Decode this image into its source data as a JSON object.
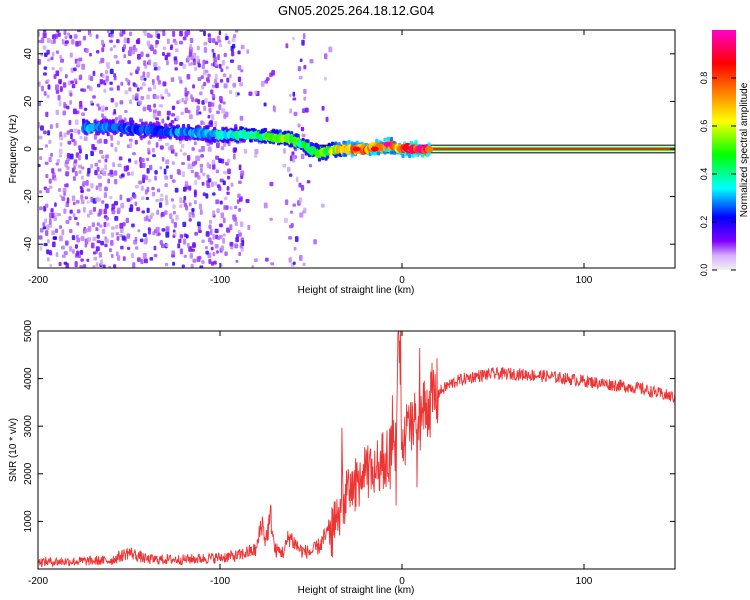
{
  "title": "GN05.2025.264.18.12.G04",
  "chart_data": [
    {
      "type": "heatmap",
      "name": "spectrogram",
      "xlabel": "Height of straight line (km)",
      "ylabel": "Frequency (Hz)",
      "xlim": [
        -200,
        150
      ],
      "ylim": [
        -50,
        50
      ],
      "x_ticks": [
        -200,
        -100,
        0,
        100
      ],
      "x_tick_labels": [
        "-200",
        "-100",
        "0",
        "100"
      ],
      "y_ticks": [
        -40,
        -20,
        0,
        20,
        40
      ],
      "y_tick_labels": [
        "-40",
        "-20",
        "0",
        "20",
        "40"
      ],
      "colorbar": {
        "label": "Normalized spectral amplitude",
        "range": [
          0,
          1
        ],
        "ticks": [
          0,
          0.2,
          0.4,
          0.6,
          0.8
        ],
        "tick_labels": [
          "0.0",
          "0.2",
          "0.4",
          "0.6",
          "0.8"
        ],
        "colormap": [
          "#f0f0f0",
          "#7f00ff",
          "#0000ff",
          "#00ffff",
          "#00ff00",
          "#ffff00",
          "#ff7f00",
          "#ff0000",
          "#ff00cc"
        ]
      },
      "ridge": {
        "description": "dominant frequency track",
        "x": [
          -175,
          -160,
          -140,
          -120,
          -100,
          -85,
          -70,
          -60,
          -55,
          -50,
          -45,
          -40,
          -35,
          -30,
          -20,
          -10,
          -8,
          -5,
          0,
          10,
          50,
          100,
          150
        ],
        "y": [
          9,
          9,
          8,
          7,
          6,
          6,
          5,
          4,
          2,
          0,
          -2,
          -1,
          0,
          0,
          0,
          1,
          2,
          1,
          0,
          0,
          0,
          0,
          0
        ],
        "amplitude": [
          0.35,
          0.35,
          0.3,
          0.35,
          0.4,
          0.5,
          0.55,
          0.6,
          0.5,
          0.55,
          0.55,
          0.6,
          0.7,
          0.8,
          0.85,
          0.9,
          0.95,
          0.8,
          0.85,
          1.0,
          1.0,
          1.0,
          1.0
        ]
      },
      "noise_regions": [
        {
          "x_range": [
            -200,
            -90
          ],
          "density": 0.65
        },
        {
          "x_range": [
            -90,
            -60
          ],
          "density": 0.08
        },
        {
          "x_range": [
            -62,
            -55
          ],
          "density": 0.35
        },
        {
          "x_range": [
            -55,
            -40
          ],
          "density": 0.08
        }
      ]
    },
    {
      "type": "line",
      "name": "snr",
      "xlabel": "Height of straight line (km)",
      "ylabel": "SNR (10 * v/v)",
      "xlim": [
        -200,
        150
      ],
      "ylim": [
        0,
        5000
      ],
      "x_ticks": [
        -200,
        -100,
        0,
        100
      ],
      "x_tick_labels": [
        "-200",
        "-100",
        "0",
        "100"
      ],
      "y_ticks": [
        1000,
        2000,
        3000,
        4000,
        5000
      ],
      "y_tick_labels": [
        "1000",
        "2000",
        "3000",
        "4000",
        "5000"
      ],
      "color": "#ee3333",
      "series": [
        {
          "name": "SNR",
          "x": [
            -200,
            -180,
            -160,
            -150,
            -140,
            -120,
            -100,
            -90,
            -85,
            -80,
            -77,
            -75,
            -72,
            -70,
            -65,
            -62,
            -60,
            -57,
            -55,
            -50,
            -45,
            -40,
            -35,
            -30,
            -25,
            -20,
            -15,
            -10,
            -5,
            -3,
            -2,
            0,
            5,
            10,
            15,
            20,
            25,
            30,
            40,
            50,
            60,
            70,
            80,
            90,
            100,
            110,
            120,
            130,
            140,
            150
          ],
          "y": [
            150,
            160,
            180,
            350,
            200,
            200,
            240,
            280,
            350,
            400,
            1000,
            600,
            1100,
            400,
            350,
            700,
            600,
            450,
            380,
            350,
            500,
            800,
            1100,
            1600,
            1800,
            2000,
            2100,
            2300,
            2500,
            2600,
            5000,
            2700,
            3000,
            3200,
            3500,
            3700,
            3850,
            3950,
            4050,
            4100,
            4100,
            4080,
            4050,
            4000,
            3950,
            3900,
            3850,
            3800,
            3700,
            3600
          ]
        }
      ]
    }
  ]
}
